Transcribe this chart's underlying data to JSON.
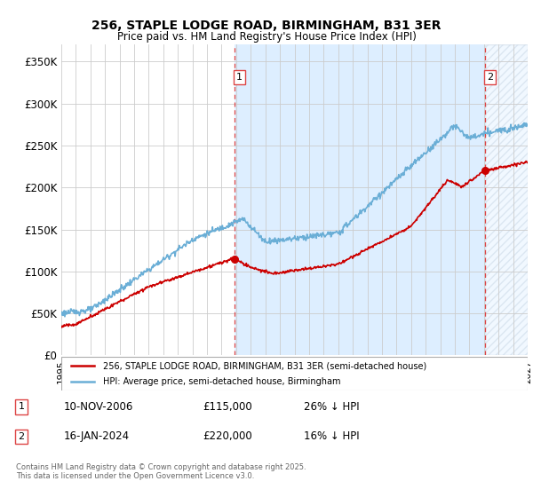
{
  "title": "256, STAPLE LODGE ROAD, BIRMINGHAM, B31 3ER",
  "subtitle": "Price paid vs. HM Land Registry's House Price Index (HPI)",
  "ylim": [
    0,
    370000
  ],
  "yticks": [
    0,
    50000,
    100000,
    150000,
    200000,
    250000,
    300000,
    350000
  ],
  "ytick_labels": [
    "£0",
    "£50K",
    "£100K",
    "£150K",
    "£200K",
    "£250K",
    "£300K",
    "£350K"
  ],
  "sale1_x": 2006.87,
  "sale1_y": 115000,
  "sale1_label": "1",
  "sale1_date": "10-NOV-2006",
  "sale1_price": "£115,000",
  "sale1_hpi": "26% ↓ HPI",
  "sale2_x": 2024.05,
  "sale2_y": 220000,
  "sale2_label": "2",
  "sale2_date": "16-JAN-2024",
  "sale2_price": "£220,000",
  "sale2_hpi": "16% ↓ HPI",
  "red_color": "#cc0000",
  "blue_color": "#6aaed6",
  "fill_color": "#ddeeff",
  "hatch_color": "#bbccdd",
  "vline_color": "#dd4444",
  "marker_color": "#cc0000",
  "background_color": "#ffffff",
  "grid_color": "#cccccc",
  "legend_label_red": "256, STAPLE LODGE ROAD, BIRMINGHAM, B31 3ER (semi-detached house)",
  "legend_label_blue": "HPI: Average price, semi-detached house, Birmingham",
  "footer": "Contains HM Land Registry data © Crown copyright and database right 2025.\nThis data is licensed under the Open Government Licence v3.0.",
  "xmin": 1995,
  "xmax": 2027
}
